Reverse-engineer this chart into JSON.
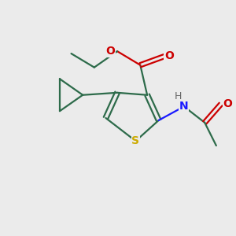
{
  "background_color": "#ebebeb",
  "bond_color": "#2d6b4a",
  "oxygen_color": "#cc0000",
  "nitrogen_color": "#1a1aff",
  "sulfur_color": "#ccaa00",
  "h_color": "#666666",
  "line_width": 1.6,
  "figsize": [
    3.0,
    3.0
  ],
  "dpi": 100,
  "xlim": [
    0,
    10
  ],
  "ylim": [
    0,
    10
  ]
}
